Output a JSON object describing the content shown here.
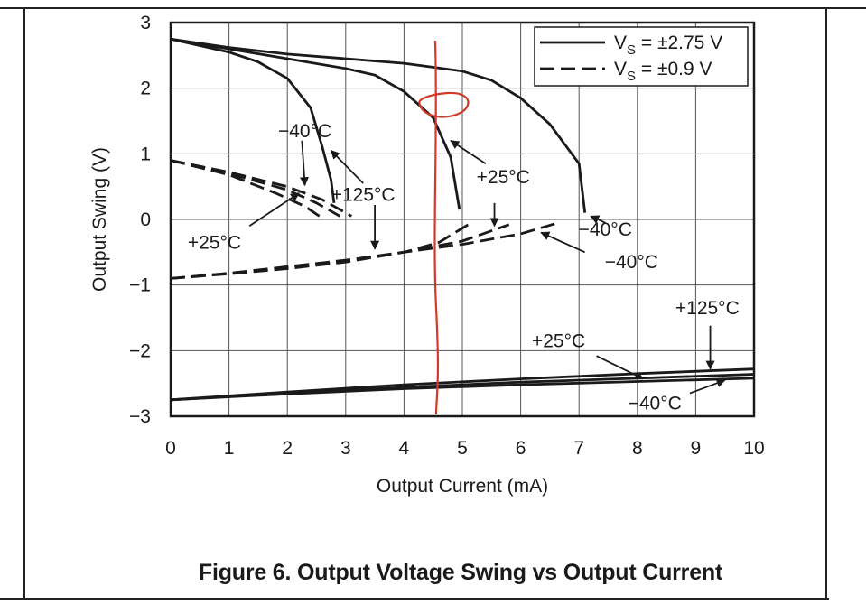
{
  "caption": "Figure 6. Output Voltage Swing vs Output Current",
  "chart_data": {
    "type": "line",
    "title": "Figure 6. Output Voltage Swing vs Output Current",
    "xlabel": "Output Current (mA)",
    "ylabel": "Output Swing (V)",
    "xlim": [
      0,
      10
    ],
    "ylim": [
      -3,
      3
    ],
    "xticks": [
      "0",
      "1",
      "2",
      "3",
      "4",
      "5",
      "6",
      "7",
      "8",
      "9",
      "10"
    ],
    "yticks": [
      "3",
      "2",
      "1",
      "0",
      "−1",
      "−2",
      "−3"
    ],
    "grid": true,
    "legend_position": "top-right",
    "legend": [
      {
        "label_main": "V",
        "label_sub": "S",
        "label_rest": " = ±2.75 V",
        "style": "solid"
      },
      {
        "label_main": "V",
        "label_sub": "S",
        "label_rest": " = ±0.9 V",
        "style": "dashed"
      }
    ],
    "series": [
      {
        "name": "VS = ±2.75 V, −40°C, high",
        "style": "solid",
        "x": [
          0,
          1,
          2,
          3,
          4,
          5,
          5.5,
          6,
          6.5,
          7,
          7.1
        ],
        "y": [
          2.75,
          2.62,
          2.52,
          2.45,
          2.38,
          2.26,
          2.12,
          1.85,
          1.45,
          0.85,
          0.1
        ]
      },
      {
        "name": "VS = ±2.75 V, +25°C, high",
        "style": "solid",
        "x": [
          0,
          1,
          2,
          3,
          3.5,
          4,
          4.5,
          4.8,
          4.95
        ],
        "y": [
          2.75,
          2.6,
          2.45,
          2.3,
          2.2,
          1.95,
          1.55,
          0.95,
          0.15
        ]
      },
      {
        "name": "VS = ±2.75 V, +125°C, high",
        "style": "solid",
        "x": [
          0,
          1,
          1.5,
          2,
          2.4,
          2.6,
          2.75,
          2.8
        ],
        "y": [
          2.75,
          2.55,
          2.4,
          2.15,
          1.7,
          1.1,
          0.6,
          0.25
        ]
      },
      {
        "name": "VS = ±0.9 V, −40°C, high",
        "style": "dashed",
        "x": [
          0,
          1,
          2,
          2.6,
          3.1
        ],
        "y": [
          0.9,
          0.72,
          0.5,
          0.3,
          0.05
        ]
      },
      {
        "name": "VS = ±0.9 V, +25°C, high",
        "style": "dashed",
        "x": [
          0,
          1,
          2,
          2.5,
          2.9
        ],
        "y": [
          0.9,
          0.7,
          0.45,
          0.25,
          0.05
        ]
      },
      {
        "name": "VS = ±0.9 V, +125°C, high",
        "style": "dashed",
        "x": [
          0,
          1,
          1.8,
          2.3,
          2.55
        ],
        "y": [
          0.9,
          0.68,
          0.4,
          0.2,
          0.05
        ]
      },
      {
        "name": "VS = ±0.9 V, −40°C, low",
        "style": "dashed",
        "x": [
          0,
          1,
          2,
          3,
          4,
          5,
          6,
          6.65
        ],
        "y": [
          -0.9,
          -0.82,
          -0.72,
          -0.62,
          -0.5,
          -0.38,
          -0.22,
          -0.05
        ]
      },
      {
        "name": "VS = ±0.9 V, +25°C, low",
        "style": "dashed",
        "x": [
          0,
          1,
          2,
          3,
          4,
          5,
          5.8
        ],
        "y": [
          -0.9,
          -0.82,
          -0.73,
          -0.63,
          -0.5,
          -0.33,
          -0.08
        ]
      },
      {
        "name": "VS = ±0.9 V, +125°C, low",
        "style": "dashed",
        "x": [
          0,
          1,
          2,
          3,
          4,
          4.6,
          5.1
        ],
        "y": [
          -0.9,
          -0.83,
          -0.75,
          -0.65,
          -0.5,
          -0.35,
          -0.08
        ]
      },
      {
        "name": "VS = ±2.75 V, −40°C, low",
        "style": "solid",
        "x": [
          0,
          2,
          4,
          6,
          8,
          10
        ],
        "y": [
          -2.75,
          -2.66,
          -2.58,
          -2.52,
          -2.47,
          -2.42
        ]
      },
      {
        "name": "VS = ±2.75 V, +25°C, low",
        "style": "solid",
        "x": [
          0,
          2,
          4,
          6,
          8,
          10
        ],
        "y": [
          -2.75,
          -2.65,
          -2.56,
          -2.48,
          -2.42,
          -2.36
        ]
      },
      {
        "name": "VS = ±2.75 V, +125°C, low",
        "style": "solid",
        "x": [
          0,
          2,
          4,
          6,
          8,
          10
        ],
        "y": [
          -2.75,
          -2.63,
          -2.52,
          -2.43,
          -2.35,
          -2.28
        ]
      }
    ],
    "annotations": [
      {
        "text": "−40°C",
        "tx": 2.3,
        "ty": 1.35,
        "ax": 2.25,
        "ay": 1.2,
        "bx": 2.3,
        "by": 0.52
      },
      {
        "text": "+125°C",
        "tx": 3.3,
        "ty": 0.38,
        "ax": 3.3,
        "ay": 0.55,
        "bx": 2.75,
        "by": 1.05
      },
      {
        "text": "+125°C",
        "tx": 3.3,
        "ty": 0.38,
        "ax": 3.5,
        "ay": 0.22,
        "bx": 3.5,
        "by": -0.45
      },
      {
        "text": "+25°C",
        "tx": 0.75,
        "ty": -0.35,
        "ax": 1.35,
        "ay": -0.1,
        "bx": 2.2,
        "by": 0.4
      },
      {
        "text": "+25°C",
        "tx": 5.7,
        "ty": 0.65,
        "ax": 5.4,
        "ay": 0.85,
        "bx": 4.8,
        "by": 1.2
      },
      {
        "text": "+25°C",
        "tx": 5.7,
        "ty": 0.65,
        "ax": 5.55,
        "ay": 0.25,
        "bx": 5.55,
        "by": -0.1
      },
      {
        "text": "−40°C",
        "tx": 7.9,
        "ty": -0.65,
        "ax": 7.1,
        "ay": -0.5,
        "bx": 6.35,
        "by": -0.2
      },
      {
        "text": "−40°C",
        "tx": 7.45,
        "ty": -0.15,
        "ax": 7.45,
        "ay": -0.05,
        "bx": 7.2,
        "by": 0.05
      },
      {
        "text": "+125°C",
        "tx": 9.2,
        "ty": -1.35,
        "ax": 9.25,
        "ay": -1.62,
        "bx": 9.25,
        "by": -2.28
      },
      {
        "text": "+25°C",
        "tx": 6.65,
        "ty": -1.85,
        "ax": 7.3,
        "ay": -2.08,
        "bx": 8.1,
        "by": -2.43
      },
      {
        "text": "−40°C",
        "tx": 8.3,
        "ty": -2.8,
        "ax": 8.9,
        "ay": -2.65,
        "bx": 9.5,
        "by": -2.45
      }
    ],
    "markup": {
      "vertical_line_x": 4.55,
      "loop_center": [
        4.6,
        1.72
      ],
      "color": "#d23a2a"
    },
    "colors": {
      "line": "#1a1a1a",
      "grid": "#555555",
      "markup": "#d23a2a"
    }
  }
}
